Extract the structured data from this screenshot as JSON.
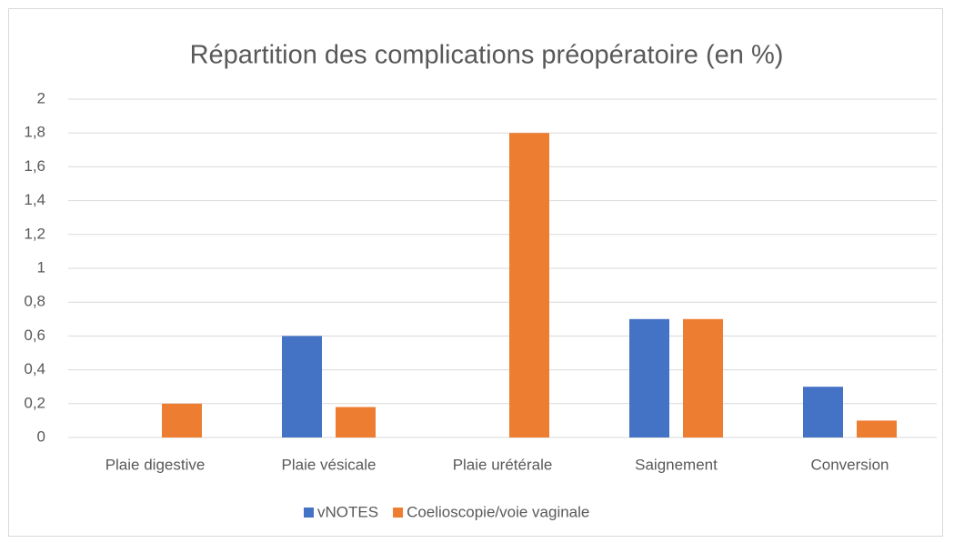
{
  "chart_data": {
    "type": "bar",
    "title": "Répartition des complications préopératoire (en %)",
    "categories": [
      "Plaie digestive",
      "Plaie vésicale",
      "Plaie urétérale",
      "Saignement",
      "Conversion"
    ],
    "series": [
      {
        "name": "vNOTES",
        "color": "#4472c4",
        "values": [
          0,
          0.6,
          0,
          0.7,
          0.3
        ]
      },
      {
        "name": "Coelioscopie/voie vaginale",
        "color": "#ed7d31",
        "values": [
          0.2,
          0.18,
          1.8,
          0.7,
          0.1
        ]
      }
    ],
    "ylim": [
      0,
      2
    ],
    "yticks": [
      0,
      {
        "value": 0.2,
        "label": "0,2"
      },
      {
        "value": 0.4,
        "label": "0,4"
      },
      {
        "value": 0.6,
        "label": "0,6"
      },
      {
        "value": 0.8,
        "label": "0,8"
      },
      1,
      {
        "value": 1.2,
        "label": "1,2"
      },
      {
        "value": 1.4,
        "label": "1,4"
      },
      {
        "value": 1.6,
        "label": "1,6"
      },
      {
        "value": 1.8,
        "label": "1,8"
      },
      2
    ],
    "grid": true,
    "legend": "bottom"
  }
}
